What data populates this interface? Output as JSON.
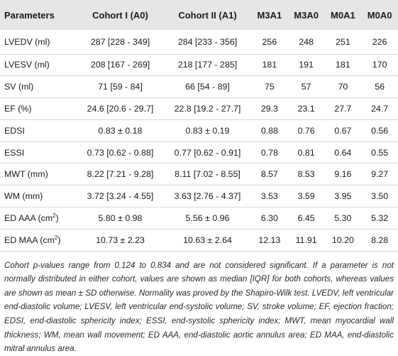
{
  "table": {
    "headers": [
      "Parameters",
      "Cohort I (A0)",
      "Cohort II (A1)",
      "M3A1",
      "M3A0",
      "M0A1",
      "M0A0"
    ],
    "rows": [
      {
        "name": "LVEDV (ml)",
        "unit_sup": "",
        "name_tail": "",
        "values": [
          "287 [228 - 349]",
          "284 [233 - 356]",
          "256",
          "248",
          "251",
          "226"
        ]
      },
      {
        "name": "LVESV (ml)",
        "unit_sup": "",
        "name_tail": "",
        "values": [
          "208 [167 - 269]",
          "218 [177 - 285]",
          "181",
          "191",
          "181",
          "170"
        ]
      },
      {
        "name": "SV (ml)",
        "unit_sup": "",
        "name_tail": "",
        "values": [
          "71 [59 - 84]",
          "66 [54 - 89]",
          "75",
          "57",
          "70",
          "56"
        ]
      },
      {
        "name": "EF (%)",
        "unit_sup": "",
        "name_tail": "",
        "values": [
          "24.6 [20.6 - 29.7]",
          "22.8 [19.2 - 27.7]",
          "29.3",
          "23.1",
          "27.7",
          "24.7"
        ]
      },
      {
        "name": "EDSI",
        "unit_sup": "",
        "name_tail": "",
        "values": [
          "0.83 ± 0.18",
          "0.83 ± 0.19",
          "0.88",
          "0.76",
          "0.67",
          "0.56"
        ]
      },
      {
        "name": "ESSI",
        "unit_sup": "",
        "name_tail": "",
        "values": [
          "0.73 [0.62 - 0.88]",
          "0.77 [0.62 - 0.91]",
          "0.78",
          "0.81",
          "0.64",
          "0.55"
        ]
      },
      {
        "name": "MWT (mm)",
        "unit_sup": "",
        "name_tail": "",
        "values": [
          "8.22 [7.21 - 9.28]",
          "8.11 [7.02 - 8.55]",
          "8.57",
          "8.53",
          "9.16",
          "9.27"
        ]
      },
      {
        "name": "WM (mm)",
        "unit_sup": "",
        "name_tail": "",
        "values": [
          "3.72 [3.24 - 4.55]",
          "3.63 [2.76 - 4.37]",
          "3.53",
          "3.59",
          "3.95",
          "3.50"
        ]
      },
      {
        "name": "ED AAA (cm",
        "unit_sup": "2",
        "name_tail": ")",
        "values": [
          "5.80 ± 0.98",
          "5.56 ± 0.96",
          "6.30",
          "6.45",
          "5.30",
          "5.32"
        ]
      },
      {
        "name": "ED MAA (cm",
        "unit_sup": "2",
        "name_tail": ")",
        "values": [
          "10.73 ± 2.23",
          "10.63 ± 2.64",
          "12.13",
          "11.91",
          "10.20",
          "8.28"
        ]
      }
    ]
  },
  "footnote": "Cohort p-values range from 0.124 to 0.834 and are not considered significant. If a parameter is not normally distributed in either cohort, values are shown as median [IQR] for both cohorts, whereas values are shown as mean ± SD otherwise. Normality was proved by the Shapiro-Wilk test. LVEDV, left ventricular end-diastolic volume; LVESV, left ventricular end-systolic volume; SV, stroke volume; EF, ejection fraction; EDSI, end-diastolic sphericity index; ESSI, end-systolic sphericity index; MWT, mean myocardial wall thickness; WM, mean wall movement; ED AAA, end-diastolic aortic annulus area; ED MAA, end-diastolic mitral annulus area."
}
